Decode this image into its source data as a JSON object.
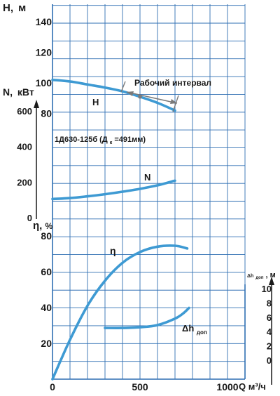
{
  "chart_data": {
    "type": "line",
    "title": "",
    "x_axis": {
      "label_main": "Q",
      "label_unit": "м³/ч",
      "range": [
        0,
        1100
      ],
      "ticks": [
        {
          "value": 0,
          "label": "0"
        },
        {
          "value": 500,
          "label": "500"
        },
        {
          "value": 1000,
          "label": "1000"
        }
      ]
    },
    "axes": {
      "H": {
        "label_letter": "H,",
        "label_unit": "м",
        "range": [
          0,
          150
        ],
        "ticks": [
          {
            "value": 80,
            "label": "80"
          },
          {
            "value": 100,
            "label": "100"
          },
          {
            "value": 120,
            "label": "120"
          },
          {
            "value": 140,
            "label": "140"
          }
        ]
      },
      "N": {
        "label_letter": "N,",
        "label_unit": "кВт",
        "range": [
          0,
          700
        ],
        "ticks": [
          {
            "value": 0,
            "label": "0"
          },
          {
            "value": 200,
            "label": "200"
          },
          {
            "value": 400,
            "label": "400"
          },
          {
            "value": 600,
            "label": "600"
          }
        ]
      },
      "eta": {
        "label_letter": "η,",
        "label_unit": "%",
        "range": [
          0,
          88
        ],
        "ticks": [
          {
            "value": 20,
            "label": "20"
          },
          {
            "value": 40,
            "label": "40"
          },
          {
            "value": 60,
            "label": "60"
          },
          {
            "value": 80,
            "label": "80"
          }
        ]
      },
      "dh": {
        "label_letter": "Δh",
        "label_sub": "доп",
        "label_unit": ", м",
        "range": [
          0,
          11
        ],
        "ticks": [
          {
            "value": 0,
            "label": "0"
          },
          {
            "value": 2,
            "label": "2"
          },
          {
            "value": 4,
            "label": "4"
          },
          {
            "value": 6,
            "label": "6"
          },
          {
            "value": 8,
            "label": "8"
          },
          {
            "value": 10,
            "label": "10"
          }
        ]
      }
    },
    "series": [
      {
        "name": "H",
        "axis": "H",
        "x": [
          0,
          100,
          200,
          300,
          400,
          500,
          600,
          700
        ],
        "y": [
          102,
          101,
          99,
          97,
          94.5,
          91,
          87,
          82
        ]
      },
      {
        "name": "N",
        "axis": "N",
        "x": [
          0,
          100,
          200,
          300,
          400,
          500,
          600,
          700
        ],
        "y": [
          105,
          110,
          120,
          132,
          146,
          162,
          182,
          208
        ]
      },
      {
        "name": "η",
        "axis": "eta",
        "x": [
          0,
          100,
          200,
          300,
          400,
          500,
          600,
          700,
          770
        ],
        "y": [
          0,
          22,
          41,
          55,
          65,
          71,
          74,
          74.5,
          73
        ]
      },
      {
        "name": "Δh",
        "name_sub": "доп",
        "axis": "dh",
        "x": [
          300,
          400,
          500,
          600,
          700,
          750,
          780
        ],
        "y": [
          4.5,
          4.5,
          4.6,
          4.9,
          5.8,
          6.6,
          7.3
        ]
      }
    ],
    "operating_point": {
      "x": 500,
      "y": 91
    },
    "annotations": {
      "work_interval_label": "Рабочий интервал",
      "work_interval_x": [
        400,
        700
      ],
      "pump_label": "1Д630-125б (Д",
      "pump_label_sub": "к",
      "pump_label_end": "=491мм)"
    },
    "colors": {
      "grid": "#2f6fb3",
      "curve": "#3e9ad3",
      "text": "#1a1a1a",
      "arrow": "#7a7a7a"
    },
    "grid": true
  }
}
